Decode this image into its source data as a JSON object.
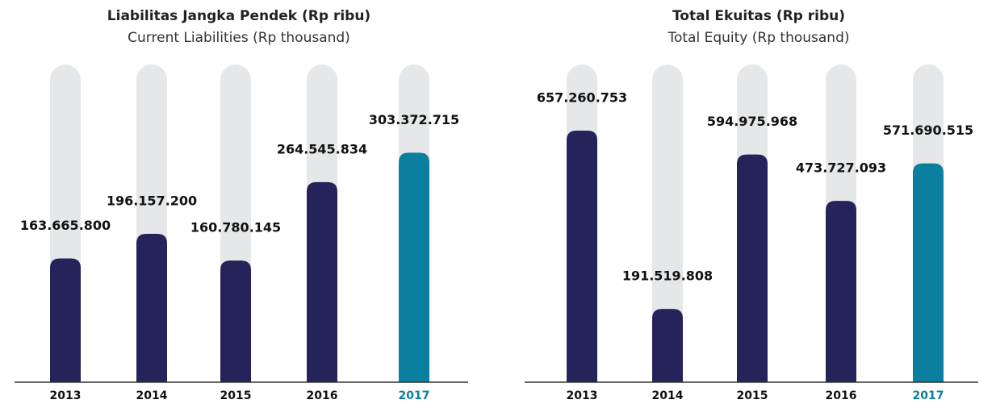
{
  "chart_data": [
    {
      "type": "bar",
      "title": "Liabilitas Jangka Pendek (Rp ribu)",
      "subtitle": "Current Liabilities (Rp thousand)",
      "categories": [
        "2013",
        "2014",
        "2015",
        "2016",
        "2017"
      ],
      "values": [
        163665800,
        196157200,
        160780145,
        264545834,
        303372715
      ],
      "value_labels": [
        "163.665.800",
        "196.157.200",
        "160.780.145",
        "264.545.834",
        "303.372.715"
      ],
      "colors": [
        "#26225a",
        "#26225a",
        "#26225a",
        "#26225a",
        "#0b7fa0"
      ],
      "ylim": [
        0,
        420000000
      ]
    },
    {
      "type": "bar",
      "title": "Total Ekuitas (Rp ribu)",
      "subtitle": "Total Equity (Rp thousand)",
      "categories": [
        "2013",
        "2014",
        "2015",
        "2016",
        "2017"
      ],
      "values": [
        657260753,
        191519808,
        594975968,
        473727093,
        571690515
      ],
      "value_labels": [
        "657.260.753",
        "191.519.808",
        "594.975.968",
        "473.727.093",
        "571.690.515"
      ],
      "colors": [
        "#26225a",
        "#26225a",
        "#26225a",
        "#26225a",
        "#0b7fa0"
      ],
      "ylim": [
        0,
        830000000
      ]
    }
  ]
}
